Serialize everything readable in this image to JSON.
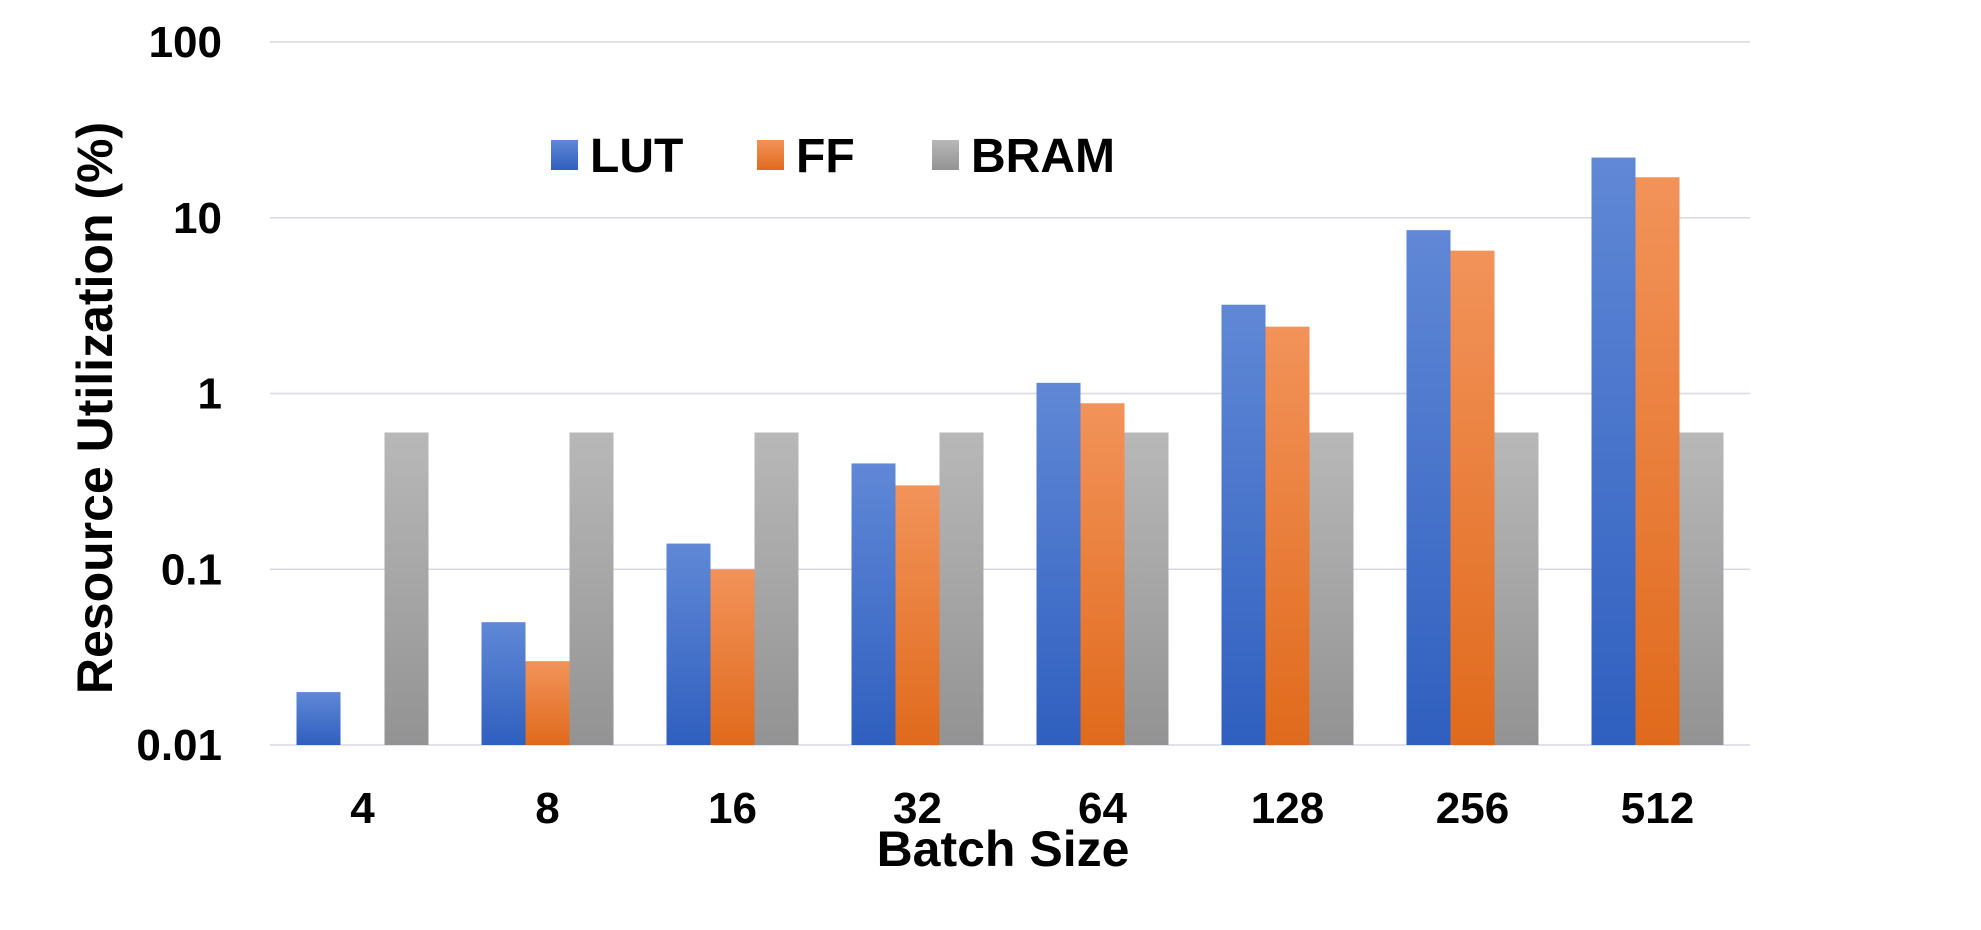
{
  "chart_data": {
    "type": "bar",
    "title": "",
    "xlabel": "Batch Size",
    "ylabel": "Resource Utilization (%)",
    "y_scale": "log",
    "ylim": [
      0.01,
      100
    ],
    "y_ticks": [
      0.01,
      0.1,
      1,
      10,
      100
    ],
    "y_tick_labels": [
      "0.01",
      "0.1",
      "1",
      "10",
      "100"
    ],
    "grid": "horizontal",
    "legend_position": "top-left",
    "categories": [
      "4",
      "8",
      "16",
      "32",
      "64",
      "128",
      "256",
      "512"
    ],
    "series": [
      {
        "name": "LUT",
        "color": "#4472C4",
        "values": [
          0.02,
          0.05,
          0.14,
          0.4,
          1.15,
          3.2,
          8.5,
          22
        ]
      },
      {
        "name": "FF",
        "color": "#ED7D31",
        "values": [
          null,
          0.03,
          0.1,
          0.3,
          0.88,
          2.4,
          6.5,
          17
        ]
      },
      {
        "name": "BRAM",
        "color": "#A5A5A5",
        "values": [
          0.6,
          0.6,
          0.6,
          0.6,
          0.6,
          0.6,
          0.6,
          0.6
        ]
      }
    ]
  }
}
